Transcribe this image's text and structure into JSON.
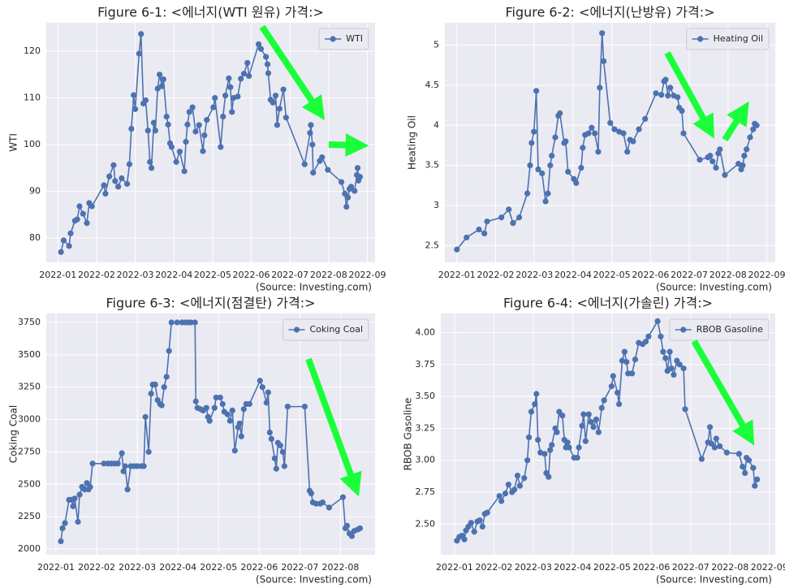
{
  "chart_data": [
    {
      "type": "line",
      "title": "Figure 6-1: <에너지(WTI 원유) 가격:>",
      "ylabel": "WTI",
      "source": "(Source: Investing.com)",
      "grid": true,
      "legend": "upper right",
      "xlim": [
        0.7,
        9.2
      ],
      "xticks": [
        {
          "value": 1,
          "label": "2022-01"
        },
        {
          "value": 2,
          "label": "2022-02"
        },
        {
          "value": 3,
          "label": "2022-03"
        },
        {
          "value": 4,
          "label": "2022-04"
        },
        {
          "value": 5,
          "label": "2022-05"
        },
        {
          "value": 6,
          "label": "2022-06"
        },
        {
          "value": 7,
          "label": "2022-07"
        },
        {
          "value": 8,
          "label": "2022-08"
        },
        {
          "value": 9,
          "label": "2022-09"
        }
      ],
      "ylim": [
        74.8,
        126.1
      ],
      "yticks": [
        80,
        90,
        100,
        110,
        120
      ],
      "x": [
        1.08,
        1.15,
        1.29,
        1.33,
        1.44,
        1.5,
        1.56,
        1.65,
        1.75,
        1.81,
        1.88,
        2.19,
        2.23,
        2.33,
        2.44,
        2.48,
        2.56,
        2.65,
        2.79,
        2.85,
        2.9,
        2.96,
        3.0,
        3.1,
        3.15,
        3.21,
        3.27,
        3.33,
        3.38,
        3.42,
        3.48,
        3.52,
        3.58,
        3.63,
        3.69,
        3.73,
        3.81,
        3.85,
        3.9,
        3.94,
        4.06,
        4.15,
        4.27,
        4.31,
        4.35,
        4.4,
        4.48,
        4.56,
        4.65,
        4.75,
        4.79,
        4.85,
        5.02,
        5.06,
        5.21,
        5.27,
        5.33,
        5.42,
        5.46,
        5.5,
        5.54,
        5.65,
        5.73,
        5.81,
        5.9,
        5.94,
        6.19,
        6.25,
        6.38,
        6.42,
        6.44,
        6.5,
        6.56,
        6.63,
        6.67,
        6.73,
        6.83,
        6.9,
        7.38,
        7.52,
        7.54,
        7.58,
        7.6,
        7.77,
        7.83,
        7.98,
        8.33,
        8.42,
        8.46,
        8.5,
        8.54,
        8.58,
        8.67,
        8.73,
        8.75,
        8.77,
        8.81
      ],
      "series": [
        {
          "name": "WTI",
          "color": "#4c72b0",
          "values": [
            77,
            79.5,
            78.3,
            81,
            83.7,
            84,
            86.8,
            85.2,
            83.2,
            87.5,
            86.8,
            91.3,
            89.5,
            93.2,
            95.6,
            92.2,
            91,
            92.8,
            91.6,
            95.8,
            103.4,
            110.6,
            107.6,
            119.5,
            123.7,
            108.8,
            109.5,
            103,
            96.3,
            95,
            104.7,
            103,
            112,
            115,
            112.5,
            114,
            106,
            104.3,
            100.3,
            99.5,
            96.3,
            98.5,
            94.3,
            100.6,
            104.3,
            107,
            108,
            102.8,
            104.2,
            98.6,
            102,
            105.3,
            108,
            110,
            99.5,
            106,
            110.5,
            114.2,
            112.3,
            107,
            110,
            110.3,
            114.1,
            115.2,
            117.5,
            114.7,
            121.5,
            120.5,
            118.8,
            117.2,
            115.3,
            109.6,
            109,
            110.5,
            104.2,
            107.7,
            111.8,
            105.8,
            95.8,
            102.5,
            104.2,
            100,
            94,
            96.5,
            97.3,
            94.6,
            92,
            89.5,
            86.7,
            88.7,
            90.5,
            91,
            90.1,
            93.5,
            95,
            92.3,
            93.1
          ]
        }
      ]
    },
    {
      "type": "line",
      "title": "Figure 6-2: <에너지(난방유) 가격:>",
      "ylabel": "Heating Oil",
      "source": "(Source: Investing.com)",
      "grid": true,
      "legend": "upper right",
      "xlim": [
        0.69,
        9.22
      ],
      "xticks": [
        {
          "value": 1,
          "label": "2022-01"
        },
        {
          "value": 2,
          "label": "2022-02"
        },
        {
          "value": 3,
          "label": "2022-03"
        },
        {
          "value": 4,
          "label": "2022-04"
        },
        {
          "value": 5,
          "label": "2022-05"
        },
        {
          "value": 6,
          "label": "2022-06"
        },
        {
          "value": 7,
          "label": "2022-07"
        },
        {
          "value": 8,
          "label": "2022-08"
        },
        {
          "value": 9,
          "label": "2022-09"
        }
      ],
      "ylim": [
        2.29,
        5.28
      ],
      "yticks": [
        2.5,
        3.0,
        3.5,
        4.0,
        4.5,
        5.0
      ],
      "x": [
        1.0,
        1.25,
        1.57,
        1.71,
        1.78,
        2.15,
        2.34,
        2.45,
        2.61,
        2.82,
        2.89,
        2.93,
        2.99,
        3.05,
        3.1,
        3.2,
        3.29,
        3.35,
        3.41,
        3.45,
        3.54,
        3.62,
        3.66,
        3.77,
        3.81,
        3.87,
        4.02,
        4.08,
        4.21,
        4.25,
        4.31,
        4.4,
        4.48,
        4.56,
        4.65,
        4.69,
        4.75,
        4.79,
        4.96,
        5.07,
        5.19,
        5.3,
        5.4,
        5.47,
        5.55,
        5.7,
        5.86,
        6.14,
        6.28,
        6.35,
        6.39,
        6.45,
        6.51,
        6.6,
        6.7,
        6.74,
        6.81,
        6.85,
        7.27,
        7.48,
        7.54,
        7.6,
        7.69,
        7.75,
        7.79,
        7.92,
        8.27,
        8.34,
        8.38,
        8.42,
        8.48,
        8.57,
        8.65,
        8.69,
        8.74
      ],
      "series": [
        {
          "name": "Heating Oil",
          "color": "#4c72b0",
          "values": [
            2.45,
            2.6,
            2.7,
            2.65,
            2.8,
            2.85,
            2.95,
            2.78,
            2.85,
            3.15,
            3.5,
            3.78,
            3.92,
            4.43,
            3.45,
            3.4,
            3.05,
            3.15,
            3.5,
            3.62,
            3.85,
            4.12,
            4.15,
            3.78,
            3.8,
            3.42,
            3.33,
            3.28,
            3.47,
            3.72,
            3.88,
            3.9,
            3.97,
            3.9,
            3.67,
            4.47,
            5.15,
            4.8,
            4.03,
            3.95,
            3.92,
            3.9,
            3.67,
            3.82,
            3.8,
            3.95,
            4.08,
            4.4,
            4.38,
            4.55,
            4.57,
            4.37,
            4.47,
            4.37,
            4.35,
            4.22,
            4.18,
            3.9,
            3.57,
            3.6,
            3.62,
            3.55,
            3.47,
            3.65,
            3.7,
            3.38,
            3.52,
            3.45,
            3.5,
            3.62,
            3.7,
            3.85,
            3.95,
            4.02,
            4.0
          ]
        }
      ]
    },
    {
      "type": "line",
      "title": "Figure 6-3: <에너지(점결탄) 가격:>",
      "ylabel": "Coking Coal",
      "source": "(Source: Investing.com)",
      "grid": true,
      "legend": "upper right",
      "xlim": [
        0.76,
        8.85
      ],
      "xticks": [
        {
          "value": 1,
          "label": "2022-01"
        },
        {
          "value": 2,
          "label": "2022-02"
        },
        {
          "value": 3,
          "label": "2022-03"
        },
        {
          "value": 4,
          "label": "2022-04"
        },
        {
          "value": 5,
          "label": "2022-05"
        },
        {
          "value": 6,
          "label": "2022-06"
        },
        {
          "value": 7,
          "label": "2022-07"
        },
        {
          "value": 8,
          "label": "2022-08"
        }
      ],
      "ylim": [
        1956,
        3819
      ],
      "yticks": [
        2000,
        2250,
        2500,
        2750,
        3000,
        3250,
        3500,
        3750
      ],
      "x": [
        1.12,
        1.16,
        1.22,
        1.32,
        1.38,
        1.42,
        1.46,
        1.54,
        1.58,
        1.64,
        1.7,
        1.76,
        1.8,
        1.84,
        1.9,
        2.18,
        2.28,
        2.36,
        2.44,
        2.52,
        2.62,
        2.66,
        2.7,
        2.76,
        2.84,
        2.92,
        3.0,
        3.1,
        3.16,
        3.2,
        3.28,
        3.34,
        3.38,
        3.44,
        3.5,
        3.56,
        3.6,
        3.66,
        3.72,
        3.78,
        3.84,
        3.98,
        4.1,
        4.18,
        4.26,
        4.32,
        4.42,
        4.44,
        4.48,
        4.56,
        4.62,
        4.7,
        4.74,
        4.78,
        4.9,
        4.94,
        5.04,
        5.1,
        5.14,
        5.22,
        5.28,
        5.34,
        5.4,
        5.48,
        5.52,
        5.56,
        5.62,
        5.68,
        5.76,
        6.02,
        6.08,
        6.18,
        6.22,
        6.26,
        6.3,
        6.38,
        6.42,
        6.46,
        6.52,
        6.58,
        6.62,
        6.7,
        7.12,
        7.24,
        7.28,
        7.32,
        7.4,
        7.5,
        7.56,
        7.72,
        8.06,
        8.12,
        8.16,
        8.22,
        8.28,
        8.34,
        8.42,
        8.48
      ],
      "series": [
        {
          "name": "Coking Coal",
          "color": "#4c72b0",
          "values": [
            2060,
            2160,
            2200,
            2380,
            2380,
            2330,
            2390,
            2210,
            2420,
            2480,
            2460,
            2510,
            2460,
            2480,
            2660,
            2660,
            2660,
            2660,
            2660,
            2660,
            2740,
            2600,
            2640,
            2460,
            2640,
            2640,
            2640,
            2640,
            2640,
            3020,
            2750,
            3200,
            3270,
            3270,
            3150,
            3120,
            3110,
            3250,
            3330,
            3530,
            3750,
            3750,
            3750,
            3750,
            3750,
            3750,
            3750,
            3140,
            3090,
            3080,
            3070,
            3090,
            3020,
            2990,
            3090,
            3170,
            3170,
            3120,
            3060,
            3040,
            2990,
            3070,
            2760,
            2940,
            2970,
            2870,
            3080,
            3120,
            3120,
            3300,
            3250,
            3130,
            3210,
            2900,
            2850,
            2700,
            2620,
            2820,
            2800,
            2750,
            2640,
            3100,
            3100,
            2450,
            2430,
            2360,
            2350,
            2350,
            2360,
            2320,
            2400,
            2160,
            2180,
            2120,
            2100,
            2140,
            2150,
            2160
          ]
        }
      ]
    },
    {
      "type": "line",
      "title": "Figure 6-4: <에너지(가솔린) 가격:>",
      "ylabel": "RBOB Gasoline",
      "source": "(Source: Investing.com)",
      "grid": true,
      "legend": "upper right",
      "xlim": [
        0.65,
        9.15
      ],
      "xticks": [
        {
          "value": 1,
          "label": "2022-01"
        },
        {
          "value": 2,
          "label": "2022-02"
        },
        {
          "value": 3,
          "label": "2022-03"
        },
        {
          "value": 4,
          "label": "2022-04"
        },
        {
          "value": 5,
          "label": "2022-05"
        },
        {
          "value": 6,
          "label": "2022-06"
        },
        {
          "value": 7,
          "label": "2022-07"
        },
        {
          "value": 8,
          "label": "2022-08"
        },
        {
          "value": 9,
          "label": "2022-09"
        }
      ],
      "ylim": [
        2.26,
        4.15
      ],
      "yticks": [
        {
          "value": 2.5,
          "label": "2.50"
        },
        {
          "value": 2.75,
          "label": "2.75"
        },
        {
          "value": 3.0,
          "label": "3.00"
        },
        {
          "value": 3.25,
          "label": "3.25"
        },
        {
          "value": 3.5,
          "label": "3.50"
        },
        {
          "value": 3.75,
          "label": "3.75"
        },
        {
          "value": 4.0,
          "label": "4.00"
        }
      ],
      "x": [
        1.06,
        1.12,
        1.19,
        1.25,
        1.29,
        1.35,
        1.42,
        1.5,
        1.58,
        1.64,
        1.71,
        1.77,
        1.83,
        2.14,
        2.19,
        2.29,
        2.37,
        2.46,
        2.52,
        2.6,
        2.66,
        2.77,
        2.85,
        2.89,
        2.95,
        3.04,
        3.08,
        3.12,
        3.18,
        3.29,
        3.33,
        3.39,
        3.43,
        3.47,
        3.56,
        3.6,
        3.66,
        3.74,
        3.79,
        3.83,
        3.87,
        3.91,
        4.04,
        4.12,
        4.16,
        4.24,
        4.28,
        4.33,
        4.41,
        4.47,
        4.53,
        4.6,
        4.66,
        4.74,
        4.8,
        4.99,
        5.03,
        5.14,
        5.18,
        5.26,
        5.32,
        5.37,
        5.41,
        5.51,
        5.59,
        5.68,
        5.78,
        5.86,
        5.93,
        6.16,
        6.24,
        6.3,
        6.36,
        6.41,
        6.47,
        6.51,
        6.57,
        6.65,
        6.72,
        6.82,
        6.86,
        7.28,
        7.44,
        7.49,
        7.53,
        7.61,
        7.65,
        7.74,
        7.92,
        8.23,
        8.32,
        8.38,
        8.42,
        8.48,
        8.59,
        8.63,
        8.69
      ],
      "series": [
        {
          "name": "RBOB Gasoline",
          "color": "#4c72b0",
          "values": [
            2.37,
            2.4,
            2.41,
            2.38,
            2.45,
            2.48,
            2.51,
            2.44,
            2.52,
            2.53,
            2.48,
            2.58,
            2.59,
            2.72,
            2.68,
            2.74,
            2.81,
            2.75,
            2.77,
            2.88,
            2.8,
            2.86,
            3.0,
            3.18,
            3.38,
            3.44,
            3.52,
            3.16,
            3.06,
            3.05,
            2.9,
            2.87,
            3.08,
            3.12,
            3.25,
            3.22,
            3.38,
            3.35,
            3.16,
            3.1,
            3.14,
            3.1,
            3.02,
            3.02,
            3.1,
            3.27,
            3.36,
            3.15,
            3.36,
            3.3,
            3.26,
            3.32,
            3.22,
            3.41,
            3.47,
            3.58,
            3.66,
            3.53,
            3.44,
            3.78,
            3.85,
            3.77,
            3.68,
            3.68,
            3.79,
            3.92,
            3.91,
            3.93,
            3.97,
            4.09,
            3.97,
            3.85,
            3.8,
            3.7,
            3.85,
            3.72,
            3.67,
            3.78,
            3.75,
            3.72,
            3.4,
            3.01,
            3.14,
            3.26,
            3.13,
            3.1,
            3.17,
            3.11,
            3.06,
            3.05,
            2.95,
            2.9,
            3.02,
            3.0,
            2.94,
            2.8,
            2.85
          ]
        }
      ]
    }
  ]
}
